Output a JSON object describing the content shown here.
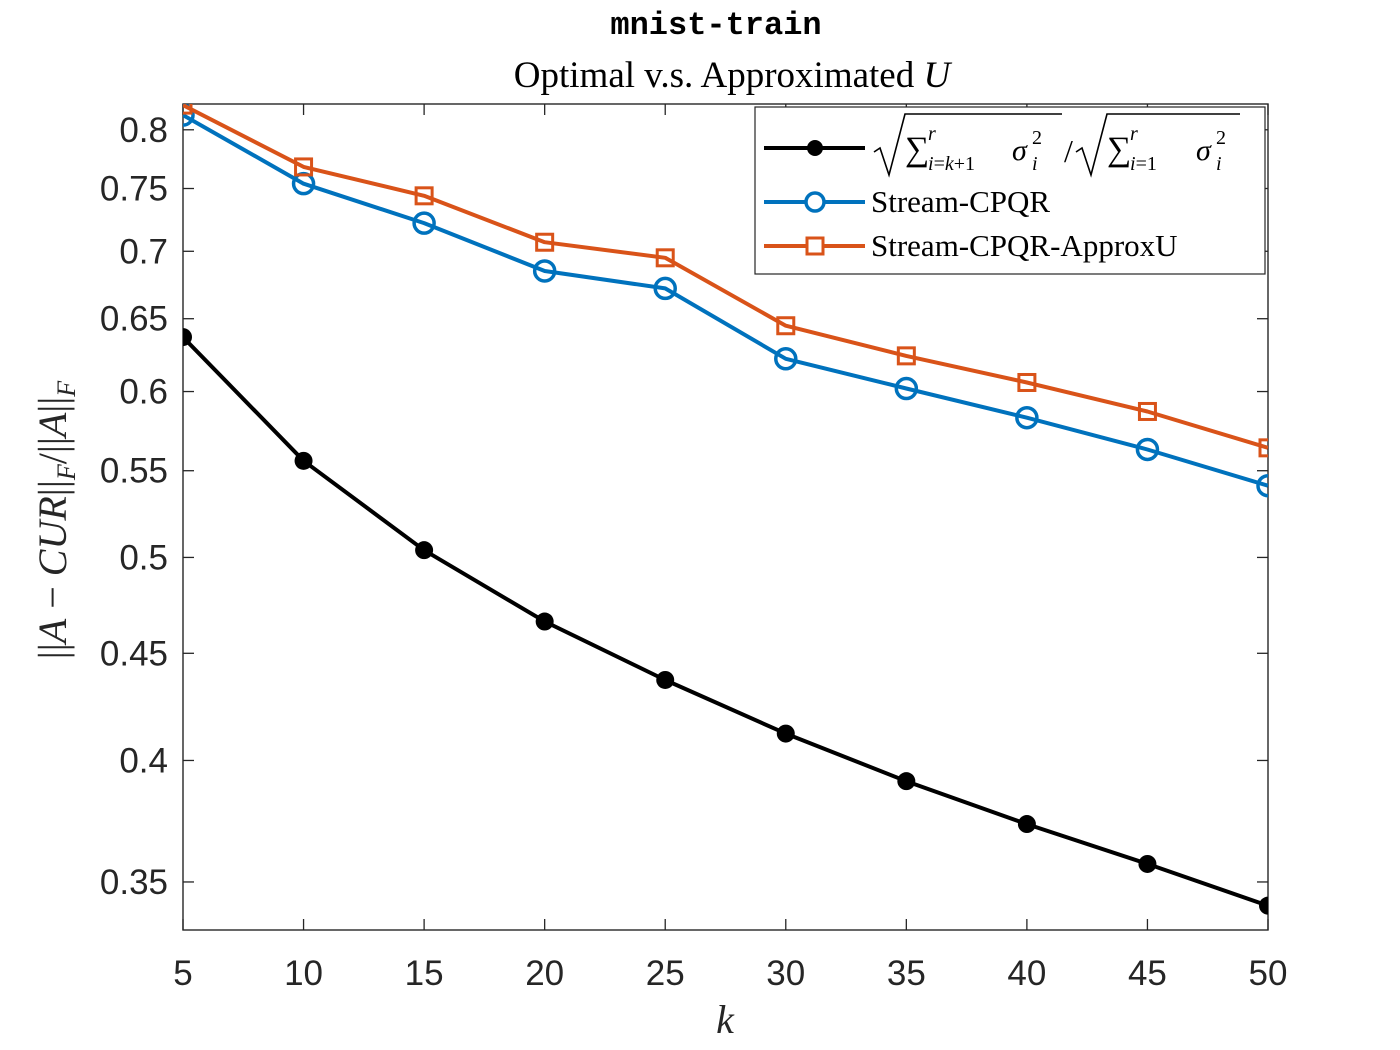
{
  "chart_data": {
    "type": "line",
    "title": "mnist-train",
    "subtitle_plain": "Optimal v.s. Approximated ",
    "subtitle_var": "U",
    "xlabel": "k",
    "ylabel": "||A − CUR||_F / ||A||_F",
    "y_scale": "log",
    "xlim": [
      5,
      50
    ],
    "ylim": [
      0.332,
      0.823
    ],
    "x_ticks": [
      5,
      10,
      15,
      20,
      25,
      30,
      35,
      40,
      45,
      50
    ],
    "y_ticks": [
      0.35,
      0.4,
      0.45,
      0.5,
      0.55,
      0.6,
      0.65,
      0.7,
      0.75,
      0.8
    ],
    "y_tick_labels": [
      "0.35",
      "0.4",
      "0.45",
      "0.5",
      "0.55",
      "0.6",
      "0.65",
      "0.7",
      "0.75",
      "0.8"
    ],
    "x": [
      5,
      10,
      15,
      20,
      25,
      30,
      35,
      40,
      45,
      50
    ],
    "grid": false,
    "legend_position": "top-right",
    "series": [
      {
        "name": "√(Σ_{i=k+1}^r σ_i^2) / √(Σ_{i=1}^r σ_i^2)",
        "color": "#000000",
        "marker": "filled-circle",
        "values": [
          0.637,
          0.556,
          0.504,
          0.466,
          0.437,
          0.412,
          0.391,
          0.373,
          0.357,
          0.341
        ]
      },
      {
        "name": "Stream-CPQR",
        "color": "#0072BD",
        "marker": "open-circle",
        "values": [
          0.813,
          0.754,
          0.722,
          0.685,
          0.672,
          0.622,
          0.602,
          0.583,
          0.563,
          0.541
        ]
      },
      {
        "name": "Stream-CPQR-ApproxU",
        "color": "#D95319",
        "marker": "open-square",
        "values": [
          0.822,
          0.768,
          0.744,
          0.707,
          0.695,
          0.645,
          0.624,
          0.606,
          0.587,
          0.564
        ]
      }
    ]
  }
}
